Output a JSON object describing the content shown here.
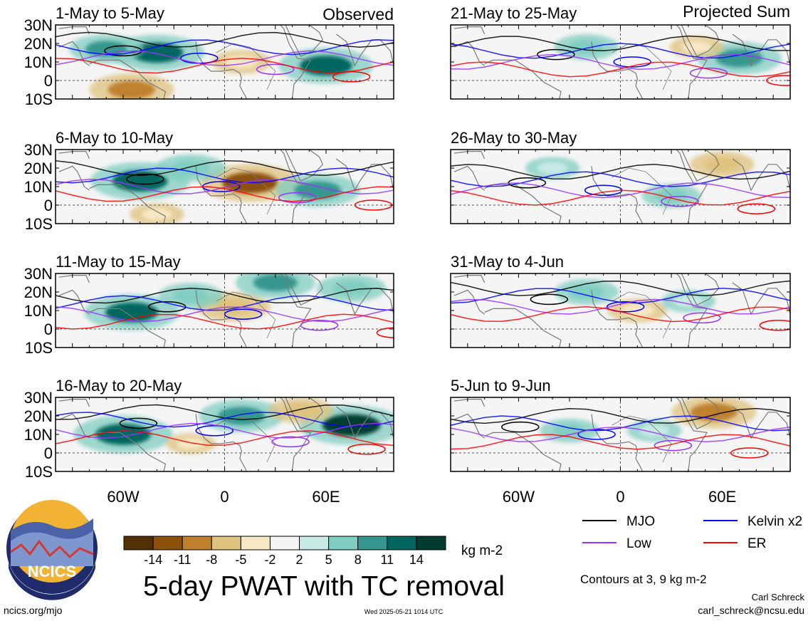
{
  "figure": {
    "title": "5-day PWAT with TC removal",
    "source": "ncics.org/mjo",
    "timestamp": "Wed 2025-05-21 1014 UTC",
    "author": "Carl Schreck",
    "email": "carl_schreck@ncsu.edu",
    "logo_text": "NCICS",
    "contours_note": "Contours at 3, 9 kg m-2",
    "units": "kg m-2",
    "column_labels": {
      "observed": "Observed",
      "projected": "Projected Sum"
    }
  },
  "panels": [
    {
      "label": "1-May to 5-May",
      "column": "observed"
    },
    {
      "label": "6-May to 10-May",
      "column": "observed"
    },
    {
      "label": "11-May to 15-May",
      "column": "observed"
    },
    {
      "label": "16-May to 20-May",
      "column": "observed"
    },
    {
      "label": "21-May to 25-May",
      "column": "projected"
    },
    {
      "label": "26-May to 30-May",
      "column": "projected"
    },
    {
      "label": "31-May to 4-Jun",
      "column": "projected"
    },
    {
      "label": "5-Jun to 9-Jun",
      "column": "projected"
    }
  ],
  "axes": {
    "lat_ticks": [
      "30N",
      "20N",
      "10N",
      "0",
      "10S"
    ],
    "lon_ticks": [
      "60W",
      "0",
      "60E"
    ]
  },
  "colorbar": {
    "tick_labels": [
      "-14",
      "-11",
      "-8",
      "-5",
      "-2",
      "2",
      "5",
      "8",
      "11",
      "14"
    ],
    "colors": [
      "#543005",
      "#8c510a",
      "#bf812d",
      "#dfc27d",
      "#f6e8c3",
      "#f5f5f5",
      "#c7eae5",
      "#80cdc1",
      "#35978f",
      "#01665e",
      "#003c30"
    ]
  },
  "legend": [
    {
      "label": "MJO",
      "color": "#000000"
    },
    {
      "label": "Kelvin x2",
      "color": "#0000ff"
    },
    {
      "label": "Low",
      "color": "#9933ff"
    },
    {
      "label": "ER",
      "color": "#ff0000"
    }
  ],
  "chart_data": {
    "type": "heatmap",
    "variable": "5-day PWAT with TC removal",
    "units": "kg m-2",
    "lon_ticks": [
      "60W",
      "0",
      "60E"
    ],
    "lat_ticks": [
      "30N",
      "20N",
      "10N",
      "0",
      "10S"
    ],
    "contour_levels": [
      3,
      9
    ],
    "color_levels": [
      -14,
      -11,
      -8,
      -5,
      -2,
      2,
      5,
      8,
      11,
      14
    ],
    "panels": [
      {
        "period": "1-May to 5-May",
        "kind": "Observed",
        "anomalies": [
          {
            "lon": -40,
            "lat": 15,
            "value": 12
          },
          {
            "lon": -70,
            "lat": 17,
            "value": 8
          },
          {
            "lon": 60,
            "lat": 8,
            "value": 12
          },
          {
            "lon": -55,
            "lat": -5,
            "value": -10
          },
          {
            "lon": 10,
            "lat": 10,
            "value": -5
          }
        ]
      },
      {
        "period": "6-May to 10-May",
        "kind": "Observed",
        "anomalies": [
          {
            "lon": -50,
            "lat": 13,
            "value": 13
          },
          {
            "lon": 15,
            "lat": 12,
            "value": -13
          },
          {
            "lon": 55,
            "lat": 8,
            "value": 10
          },
          {
            "lon": -20,
            "lat": 20,
            "value": 7
          },
          {
            "lon": -40,
            "lat": -5,
            "value": -4
          }
        ]
      },
      {
        "period": "11-May to 15-May",
        "kind": "Observed",
        "anomalies": [
          {
            "lon": -55,
            "lat": 9,
            "value": 12
          },
          {
            "lon": 5,
            "lat": 12,
            "value": -8
          },
          {
            "lon": 30,
            "lat": 25,
            "value": 9
          },
          {
            "lon": 75,
            "lat": 22,
            "value": 7
          },
          {
            "lon": -20,
            "lat": 18,
            "value": 6
          }
        ]
      },
      {
        "period": "16-May to 20-May",
        "kind": "Observed",
        "anomalies": [
          {
            "lon": -60,
            "lat": 10,
            "value": 13
          },
          {
            "lon": 10,
            "lat": 20,
            "value": 10
          },
          {
            "lon": 75,
            "lat": 15,
            "value": 14
          },
          {
            "lon": 45,
            "lat": 23,
            "value": -6
          },
          {
            "lon": -20,
            "lat": 5,
            "value": -3
          }
        ]
      },
      {
        "period": "21-May to 25-May",
        "kind": "Projected Sum",
        "anomalies": [
          {
            "lon": 70,
            "lat": 12,
            "value": 10
          },
          {
            "lon": -20,
            "lat": 18,
            "value": 6
          },
          {
            "lon": 45,
            "lat": 18,
            "value": -4
          }
        ]
      },
      {
        "period": "26-May to 30-May",
        "kind": "Projected Sum",
        "anomalies": [
          {
            "lon": 60,
            "lat": 22,
            "value": -6
          },
          {
            "lon": -40,
            "lat": 20,
            "value": 4
          },
          {
            "lon": 30,
            "lat": 5,
            "value": 5
          }
        ]
      },
      {
        "period": "31-May to 4-Jun",
        "kind": "Projected Sum",
        "anomalies": [
          {
            "lon": -20,
            "lat": 20,
            "value": 6
          },
          {
            "lon": 10,
            "lat": 10,
            "value": -5
          },
          {
            "lon": 40,
            "lat": 15,
            "value": 4
          }
        ]
      },
      {
        "period": "5-Jun to 9-Jun",
        "kind": "Projected Sum",
        "anomalies": [
          {
            "lon": 55,
            "lat": 22,
            "value": -10
          },
          {
            "lon": -30,
            "lat": 12,
            "value": 5
          },
          {
            "lon": 20,
            "lat": 12,
            "value": 4
          }
        ]
      }
    ]
  }
}
